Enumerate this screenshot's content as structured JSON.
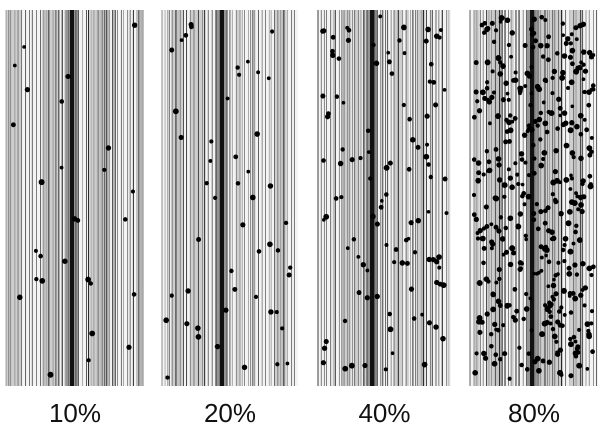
{
  "panels": [
    {
      "label": "10%"
    },
    {
      "label": "20%"
    },
    {
      "label": "40%"
    },
    {
      "label": "80%"
    }
  ]
}
